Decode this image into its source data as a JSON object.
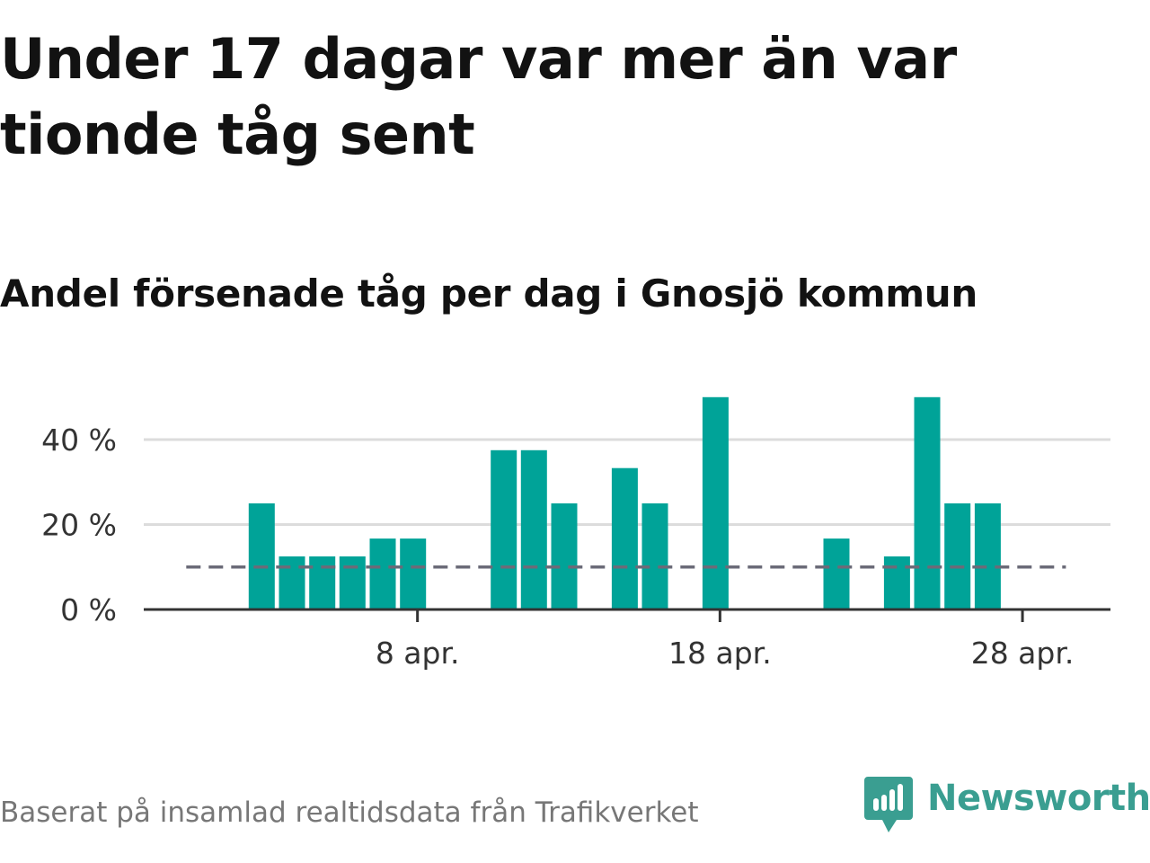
{
  "header": {
    "title": "Under 17 dagar var mer än var tionde tåg sent",
    "subtitle": "Andel försenade tåg per dag i Gnosjö kommun"
  },
  "footer": {
    "source": "Baserat på insamlad realtidsdata från Trafikverket",
    "brand": "Newsworthy"
  },
  "colors": {
    "bar": "#00a398",
    "reference_line": "#6b6b78",
    "grid": "#dcdcdc",
    "axis": "#333333",
    "brand": "#3a9e91"
  },
  "chart_data": {
    "type": "bar",
    "title": "Under 17 dagar var mer än var tionde tåg sent",
    "subtitle": "Andel försenade tåg per dag i Gnosjö kommun",
    "xlabel": "",
    "ylabel": "",
    "x_ticks": [
      {
        "day": 8,
        "label": "8 apr."
      },
      {
        "day": 18,
        "label": "18 apr."
      },
      {
        "day": 28,
        "label": "28 apr."
      }
    ],
    "y_ticks": [
      {
        "value": 0,
        "label": "0 %"
      },
      {
        "value": 20,
        "label": "20 %"
      },
      {
        "value": 40,
        "label": "40 %"
      }
    ],
    "ylim": [
      0,
      50
    ],
    "xlim_days": [
      0,
      31
    ],
    "unit": "%",
    "grid": true,
    "legend": "none",
    "reference_line": {
      "value": 10,
      "from_day": 0,
      "to_day": 30
    },
    "series": [
      {
        "values": [
          {
            "day": 3,
            "value": 25
          },
          {
            "day": 4,
            "value": 12.5
          },
          {
            "day": 5,
            "value": 12.5
          },
          {
            "day": 6,
            "value": 12.5
          },
          {
            "day": 7,
            "value": 16.7
          },
          {
            "day": 8,
            "value": 16.7
          },
          {
            "day": 11,
            "value": 37.5
          },
          {
            "day": 12,
            "value": 37.5
          },
          {
            "day": 13,
            "value": 25
          },
          {
            "day": 15,
            "value": 33.3
          },
          {
            "day": 16,
            "value": 25
          },
          {
            "day": 18,
            "value": 50
          },
          {
            "day": 22,
            "value": 16.7
          },
          {
            "day": 24,
            "value": 12.5
          },
          {
            "day": 25,
            "value": 50
          },
          {
            "day": 26,
            "value": 25
          },
          {
            "day": 27,
            "value": 25
          }
        ]
      }
    ]
  }
}
